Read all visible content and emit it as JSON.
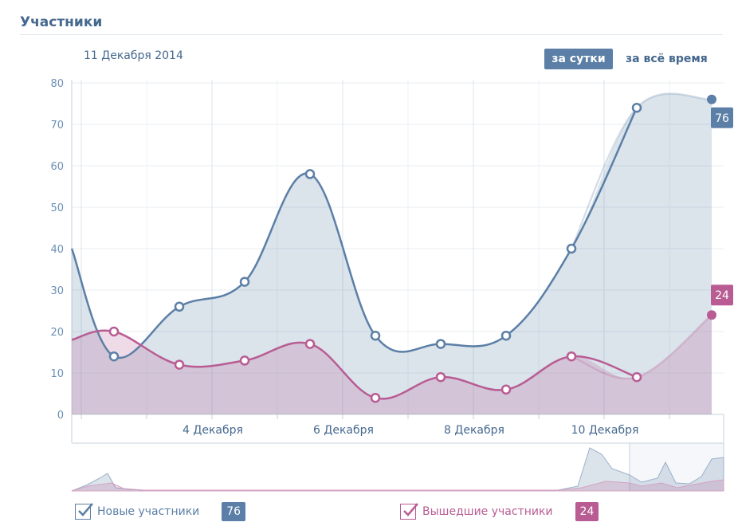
{
  "header": {
    "title": "Участники",
    "date": "11 Декабря 2014"
  },
  "controls": {
    "day_label": "за сутки",
    "all_time_label": "за всё время"
  },
  "colors": {
    "new": "#5b7fa6",
    "left": "#b85c93"
  },
  "chart_data": {
    "type": "area",
    "ylim": [
      0,
      80
    ],
    "yticks": [
      0,
      10,
      20,
      30,
      40,
      50,
      60,
      70,
      80
    ],
    "x_tick_labels": [
      {
        "day": 4,
        "label": "4 Декабря"
      },
      {
        "day": 6,
        "label": "6 Декабря"
      },
      {
        "day": 8,
        "label": "8 Декабря"
      },
      {
        "day": 10,
        "label": "10 Декабря"
      }
    ],
    "x": [
      1.5,
      2.5,
      3.5,
      4.5,
      5.5,
      6.5,
      7.5,
      8.5,
      9.5,
      10.5,
      11.5,
      12.5
    ],
    "series": [
      {
        "name": "Новые участники",
        "values": [
          40,
          14,
          26,
          32,
          58,
          19,
          17,
          19,
          40,
          74,
          76
        ],
        "x": [
          1.5,
          2.5,
          3.5,
          4.5,
          5.5,
          6.5,
          7.5,
          8.5,
          9.5,
          10.5,
          11.5
        ],
        "last": 76
      },
      {
        "name": "Вышедшие участники",
        "values": [
          18,
          20,
          12,
          13,
          17,
          4,
          9,
          6,
          14,
          9,
          24
        ],
        "x": [
          1.5,
          2.5,
          3.5,
          4.5,
          5.5,
          6.5,
          7.5,
          8.5,
          9.5,
          10.5,
          11.5
        ],
        "last": 24
      }
    ]
  },
  "legend": {
    "new_label": "Новые участники",
    "new_value": "76",
    "left_label": "Вышедшие участники",
    "left_value": "24"
  }
}
